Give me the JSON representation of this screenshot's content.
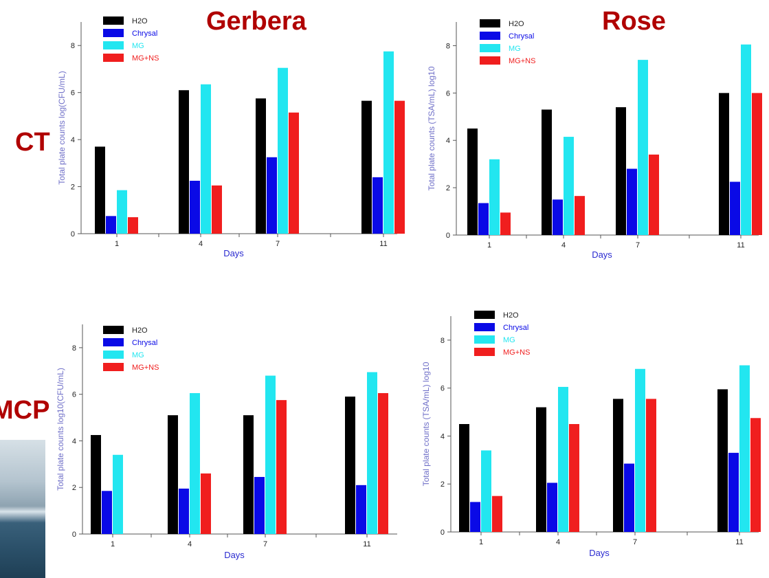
{
  "labels": {
    "gerbera": "Gerbera",
    "rose": "Rose",
    "ct": "CT",
    "mcp": "MCP"
  },
  "colors": {
    "H2O": "#000000",
    "Chrysal": "#0a0ae6",
    "MG": "#22e6f0",
    "MG+NS": "#f01e1e",
    "axis_label": "#2a2ad0",
    "panel_label": "#b00000"
  },
  "chart_data": [
    {
      "type": "bar",
      "categories": [
        "1",
        "4",
        "7",
        "11"
      ],
      "series": [
        {
          "name": "H2O",
          "values": [
            3.7,
            6.1,
            5.75,
            5.65
          ]
        },
        {
          "name": "Chrysal",
          "values": [
            0.75,
            2.25,
            3.25,
            2.4
          ]
        },
        {
          "name": "MG",
          "values": [
            1.85,
            6.35,
            7.05,
            7.75
          ]
        },
        {
          "name": "MG+NS",
          "values": [
            0.7,
            2.05,
            5.15,
            5.65
          ]
        }
      ],
      "xlabel": "Days",
      "ylabel": "Total plate counts log(CFU/mL)",
      "ylim": [
        0,
        9
      ],
      "yticks": [
        0,
        2,
        4,
        6,
        8
      ],
      "legend": "top-left",
      "grid": false
    },
    {
      "type": "bar",
      "categories": [
        "1",
        "4",
        "7",
        "11"
      ],
      "series": [
        {
          "name": "H2O",
          "values": [
            4.5,
            5.3,
            5.4,
            6.0
          ]
        },
        {
          "name": "Chrysal",
          "values": [
            1.35,
            1.5,
            2.8,
            2.25
          ]
        },
        {
          "name": "MG",
          "values": [
            3.2,
            4.15,
            7.4,
            8.05
          ]
        },
        {
          "name": "MG+NS",
          "values": [
            0.95,
            1.65,
            3.4,
            6.0
          ]
        }
      ],
      "xlabel": "Days",
      "ylabel": "Total plate counts (TSA/mL) log10",
      "ylim": [
        0,
        9
      ],
      "yticks": [
        0,
        2,
        4,
        6,
        8
      ],
      "legend": "top-left",
      "grid": false
    },
    {
      "type": "bar",
      "categories": [
        "1",
        "4",
        "7",
        "11"
      ],
      "series": [
        {
          "name": "H2O",
          "values": [
            4.25,
            5.1,
            5.1,
            5.9
          ]
        },
        {
          "name": "Chrysal",
          "values": [
            1.85,
            1.95,
            2.45,
            2.1
          ]
        },
        {
          "name": "MG",
          "values": [
            3.4,
            6.05,
            6.8,
            6.95
          ]
        },
        {
          "name": "MG+NS",
          "values": [
            0,
            2.6,
            5.75,
            6.05
          ]
        }
      ],
      "xlabel": "Days",
      "ylabel": "Total plate counts log10(CFU/mL)",
      "ylim": [
        0,
        9
      ],
      "yticks": [
        0,
        2,
        4,
        6,
        8
      ],
      "legend": "top-left",
      "grid": false
    },
    {
      "type": "bar",
      "categories": [
        "1",
        "4",
        "7",
        "11"
      ],
      "series": [
        {
          "name": "H2O",
          "values": [
            4.5,
            5.2,
            5.55,
            5.95
          ]
        },
        {
          "name": "Chrysal",
          "values": [
            1.25,
            2.05,
            2.85,
            3.3
          ]
        },
        {
          "name": "MG",
          "values": [
            3.4,
            6.05,
            6.8,
            6.95
          ]
        },
        {
          "name": "MG+NS",
          "values": [
            1.5,
            4.5,
            5.55,
            4.75
          ]
        }
      ],
      "xlabel": "Days",
      "ylabel": "Total plate counts (TSA/mL) log10",
      "ylim": [
        0,
        9
      ],
      "yticks": [
        0,
        2,
        4,
        6,
        8
      ],
      "legend": "top-left",
      "grid": false
    }
  ]
}
